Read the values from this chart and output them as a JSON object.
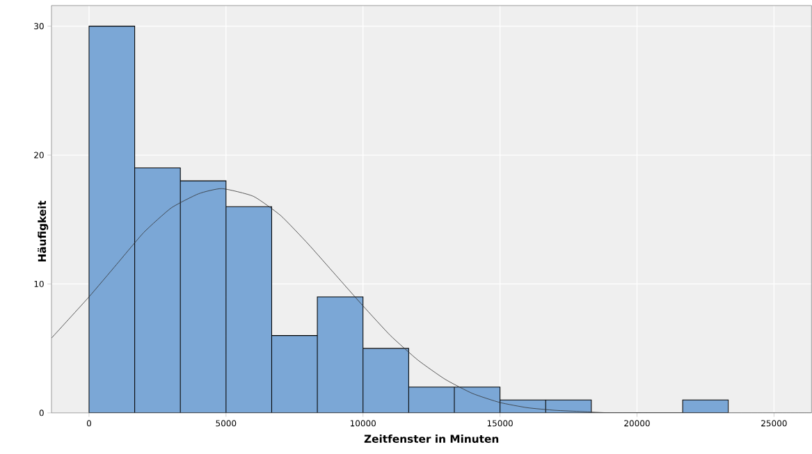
{
  "chart_data": {
    "type": "histogram",
    "xlabel": "Zeitfenster in Minuten",
    "ylabel": "Häufigkeit",
    "xlim": [
      -1370,
      26370
    ],
    "ylim": [
      0,
      31.6
    ],
    "xticks": [
      0,
      5000,
      10000,
      15000,
      20000,
      25000
    ],
    "yticks": [
      0,
      10,
      20,
      30
    ],
    "grid": true,
    "series": [
      {
        "color": "#7ba7d6",
        "bins": [
          0,
          1667,
          3333,
          5000,
          6667,
          8333,
          10000,
          11667,
          13333,
          15000,
          16667,
          18333,
          20000,
          21667,
          23333
        ],
        "values": [
          30,
          19,
          18,
          16,
          6,
          9,
          5,
          2,
          2,
          1,
          1,
          0,
          0,
          1
        ]
      },
      {
        "type": "line",
        "color": "#333333",
        "x": [
          -1370,
          0,
          1000,
          2000,
          3000,
          4000,
          4850,
          6000,
          7000,
          8000,
          9000,
          10000,
          11000,
          12000,
          13000,
          14000,
          15000,
          16000,
          17000,
          18000,
          19000,
          20000,
          22000,
          26370
        ],
        "values": [
          5.8,
          9.0,
          11.5,
          14.0,
          15.9,
          17.0,
          17.4,
          16.8,
          15.3,
          13.1,
          10.7,
          8.3,
          6.0,
          4.1,
          2.6,
          1.5,
          0.8,
          0.4,
          0.2,
          0.1,
          0.0,
          0.0,
          0.0,
          0.0
        ]
      }
    ]
  }
}
